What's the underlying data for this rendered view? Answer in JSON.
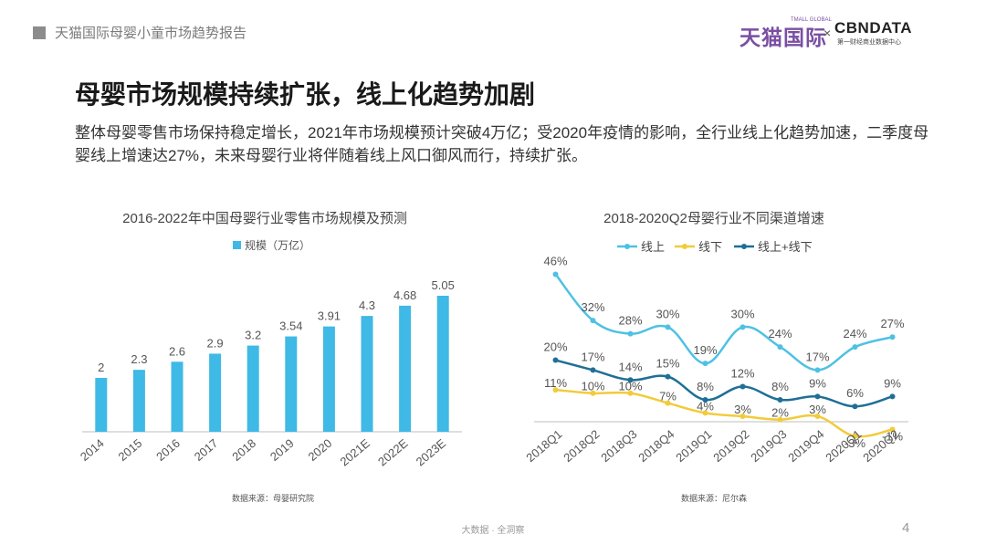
{
  "header": {
    "title": "天猫国际母婴小童市场趋势报告"
  },
  "logos": {
    "tmall": "天猫国际",
    "tmall_small": "TMALL GLOBAL",
    "times": "×",
    "cbn": "CBNDATA",
    "cbn_sub": "第一财经商业数据中心"
  },
  "page": {
    "title": "母婴市场规模持续扩张，线上化趋势加剧",
    "paragraph": "整体母婴零售市场保持稳定增长，2021年市场规模预计突破4万亿；受2020年疫情的影响，全行业线上化趋势加速，二季度母婴线上增速达27%，未来母婴行业将伴随着线上风口御风而行，持续扩张。"
  },
  "footer": {
    "text": "大数据 · 全洞察",
    "page_number": "4"
  },
  "colors": {
    "bar": "#3fb9e5",
    "online": "#4ec1e3",
    "offline": "#f2cb3a",
    "total": "#1f6f96"
  },
  "chart_data": [
    {
      "type": "bar",
      "title": "2016-2022年中国母婴行业零售市场规模及预测",
      "legend": "规模（万亿）",
      "categories": [
        "2014",
        "2015",
        "2016",
        "2017",
        "2018",
        "2019",
        "2020",
        "2021E",
        "2022E",
        "2023E"
      ],
      "values": [
        2,
        2.3,
        2.6,
        2.9,
        3.2,
        3.54,
        3.91,
        4.3,
        4.68,
        5.05
      ],
      "value_labels": [
        "2",
        "2.3",
        "2.6",
        "2.9",
        "3.2",
        "3.54",
        "3.91",
        "4.3",
        "4.68",
        "5.05"
      ],
      "ylim": [
        0,
        5.05
      ],
      "source": "数据来源：母婴研究院"
    },
    {
      "type": "line",
      "title": "2018-2020Q2母婴行业不同渠道增速",
      "categories": [
        "2018Q1",
        "2018Q2",
        "2018Q3",
        "2018Q4",
        "2019Q1",
        "2019Q2",
        "2019Q3",
        "2019Q4",
        "2020Q1",
        "2020Q2"
      ],
      "series": [
        {
          "name": "线上",
          "values": [
            46,
            32,
            28,
            30,
            19,
            30,
            24,
            17,
            24,
            27
          ],
          "labels": [
            "46%",
            "32%",
            "28%",
            "30%",
            "19%",
            "30%",
            "24%",
            "17%",
            "24%",
            "27%"
          ]
        },
        {
          "name": "线下",
          "values": [
            11,
            10,
            10,
            7,
            4,
            3,
            2,
            3,
            -3,
            -1
          ],
          "labels": [
            "11%",
            "10%",
            "10%",
            "7%",
            "4%",
            "3%",
            "2%",
            "3%",
            "-3%",
            "-1%"
          ]
        },
        {
          "name": "线上+线下",
          "values": [
            20,
            17,
            14,
            15,
            8,
            12,
            8,
            9,
            6,
            9
          ],
          "labels": [
            "20%",
            "17%",
            "14%",
            "15%",
            "8%",
            "12%",
            "8%",
            "9%",
            "6%",
            "9%"
          ]
        }
      ],
      "ylim": [
        -5,
        50
      ],
      "source": "数据来源：尼尔森"
    }
  ]
}
